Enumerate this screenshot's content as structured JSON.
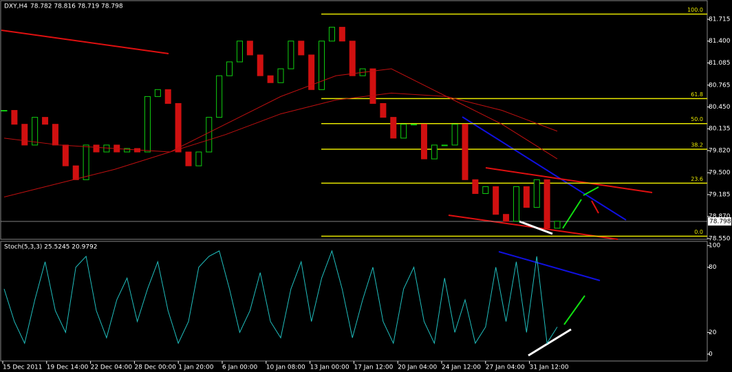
{
  "header": {
    "symbol": "DXY,H4",
    "ohlc": "78.782 78.816 78.719 78.798"
  },
  "price_axis": {
    "ticks": [
      81.715,
      {
        "value": 81.4,
        "label": "81.400"
      },
      81.085,
      80.765,
      {
        "value": 80.45,
        "label": "80.450"
      },
      80.135,
      {
        "value": 79.82,
        "label": "79.820"
      },
      {
        "value": 79.5,
        "label": "79.500"
      },
      79.185,
      {
        "value": 78.87,
        "label": "78.870"
      },
      {
        "value": 78.55,
        "label": "78.550"
      }
    ],
    "current": {
      "value": 78.798,
      "label": "78.798"
    }
  },
  "fib_levels": [
    {
      "label": "100.0",
      "price": 81.79
    },
    {
      "label": "61.8",
      "price": 80.57
    },
    {
      "label": "50.0",
      "price": 80.21
    },
    {
      "label": "38.2",
      "price": 79.84
    },
    {
      "label": "23.6",
      "price": 79.35
    },
    {
      "label": "0.0",
      "price": 78.585
    }
  ],
  "closes": [
    80.4,
    80.2,
    79.9,
    80.3,
    80.2,
    79.9,
    79.6,
    79.4,
    79.9,
    79.8,
    79.9,
    79.8,
    79.85,
    79.8,
    80.6,
    80.7,
    80.5,
    79.8,
    79.6,
    79.8,
    80.3,
    80.9,
    81.1,
    81.4,
    81.2,
    80.9,
    80.8,
    81.0,
    81.4,
    81.2,
    80.7,
    81.4,
    81.6,
    81.4,
    80.9,
    81.0,
    80.5,
    80.3,
    80.0,
    80.2,
    80.2,
    79.7,
    79.9,
    79.9,
    80.2,
    79.4,
    79.2,
    79.3,
    78.9,
    78.8,
    79.3,
    79.0,
    79.4,
    78.7,
    78.8
  ],
  "ma_slow": [
    79.15,
    79.35,
    79.55,
    79.8,
    80.05,
    80.35,
    80.55,
    80.65,
    80.6,
    80.4,
    80.1
  ],
  "ma_fast": [
    80.0,
    79.9,
    79.85,
    79.8,
    80.2,
    80.6,
    80.9,
    81.0,
    80.6,
    80.2,
    79.7
  ],
  "stoch": {
    "title": "Stoch(5,3,3) 25.5245 20.9792",
    "ticks": [
      100,
      80,
      20,
      0
    ],
    "values": [
      60,
      30,
      10,
      50,
      85,
      40,
      20,
      80,
      90,
      40,
      15,
      50,
      70,
      30,
      60,
      85,
      40,
      10,
      30,
      80,
      90,
      95,
      60,
      20,
      40,
      75,
      30,
      15,
      60,
      85,
      30,
      70,
      95,
      60,
      15,
      50,
      80,
      30,
      10,
      60,
      80,
      30,
      10,
      70,
      20,
      50,
      10,
      25,
      80,
      30,
      85,
      20,
      90,
      10,
      25
    ]
  },
  "dates": [
    "15 Dec 2011",
    "19 Dec 14:00",
    "22 Dec 04:00",
    "28 Dec 00:00",
    "1 Jan 20:00",
    "6 Jan 00:00",
    "10 Jan 08:00",
    "13 Jan 00:00",
    "17 Jan 12:00",
    "20 Jan 04:00",
    "24 Jan 12:00",
    "27 Jan 04:00",
    "31 Jan 12:00"
  ]
}
